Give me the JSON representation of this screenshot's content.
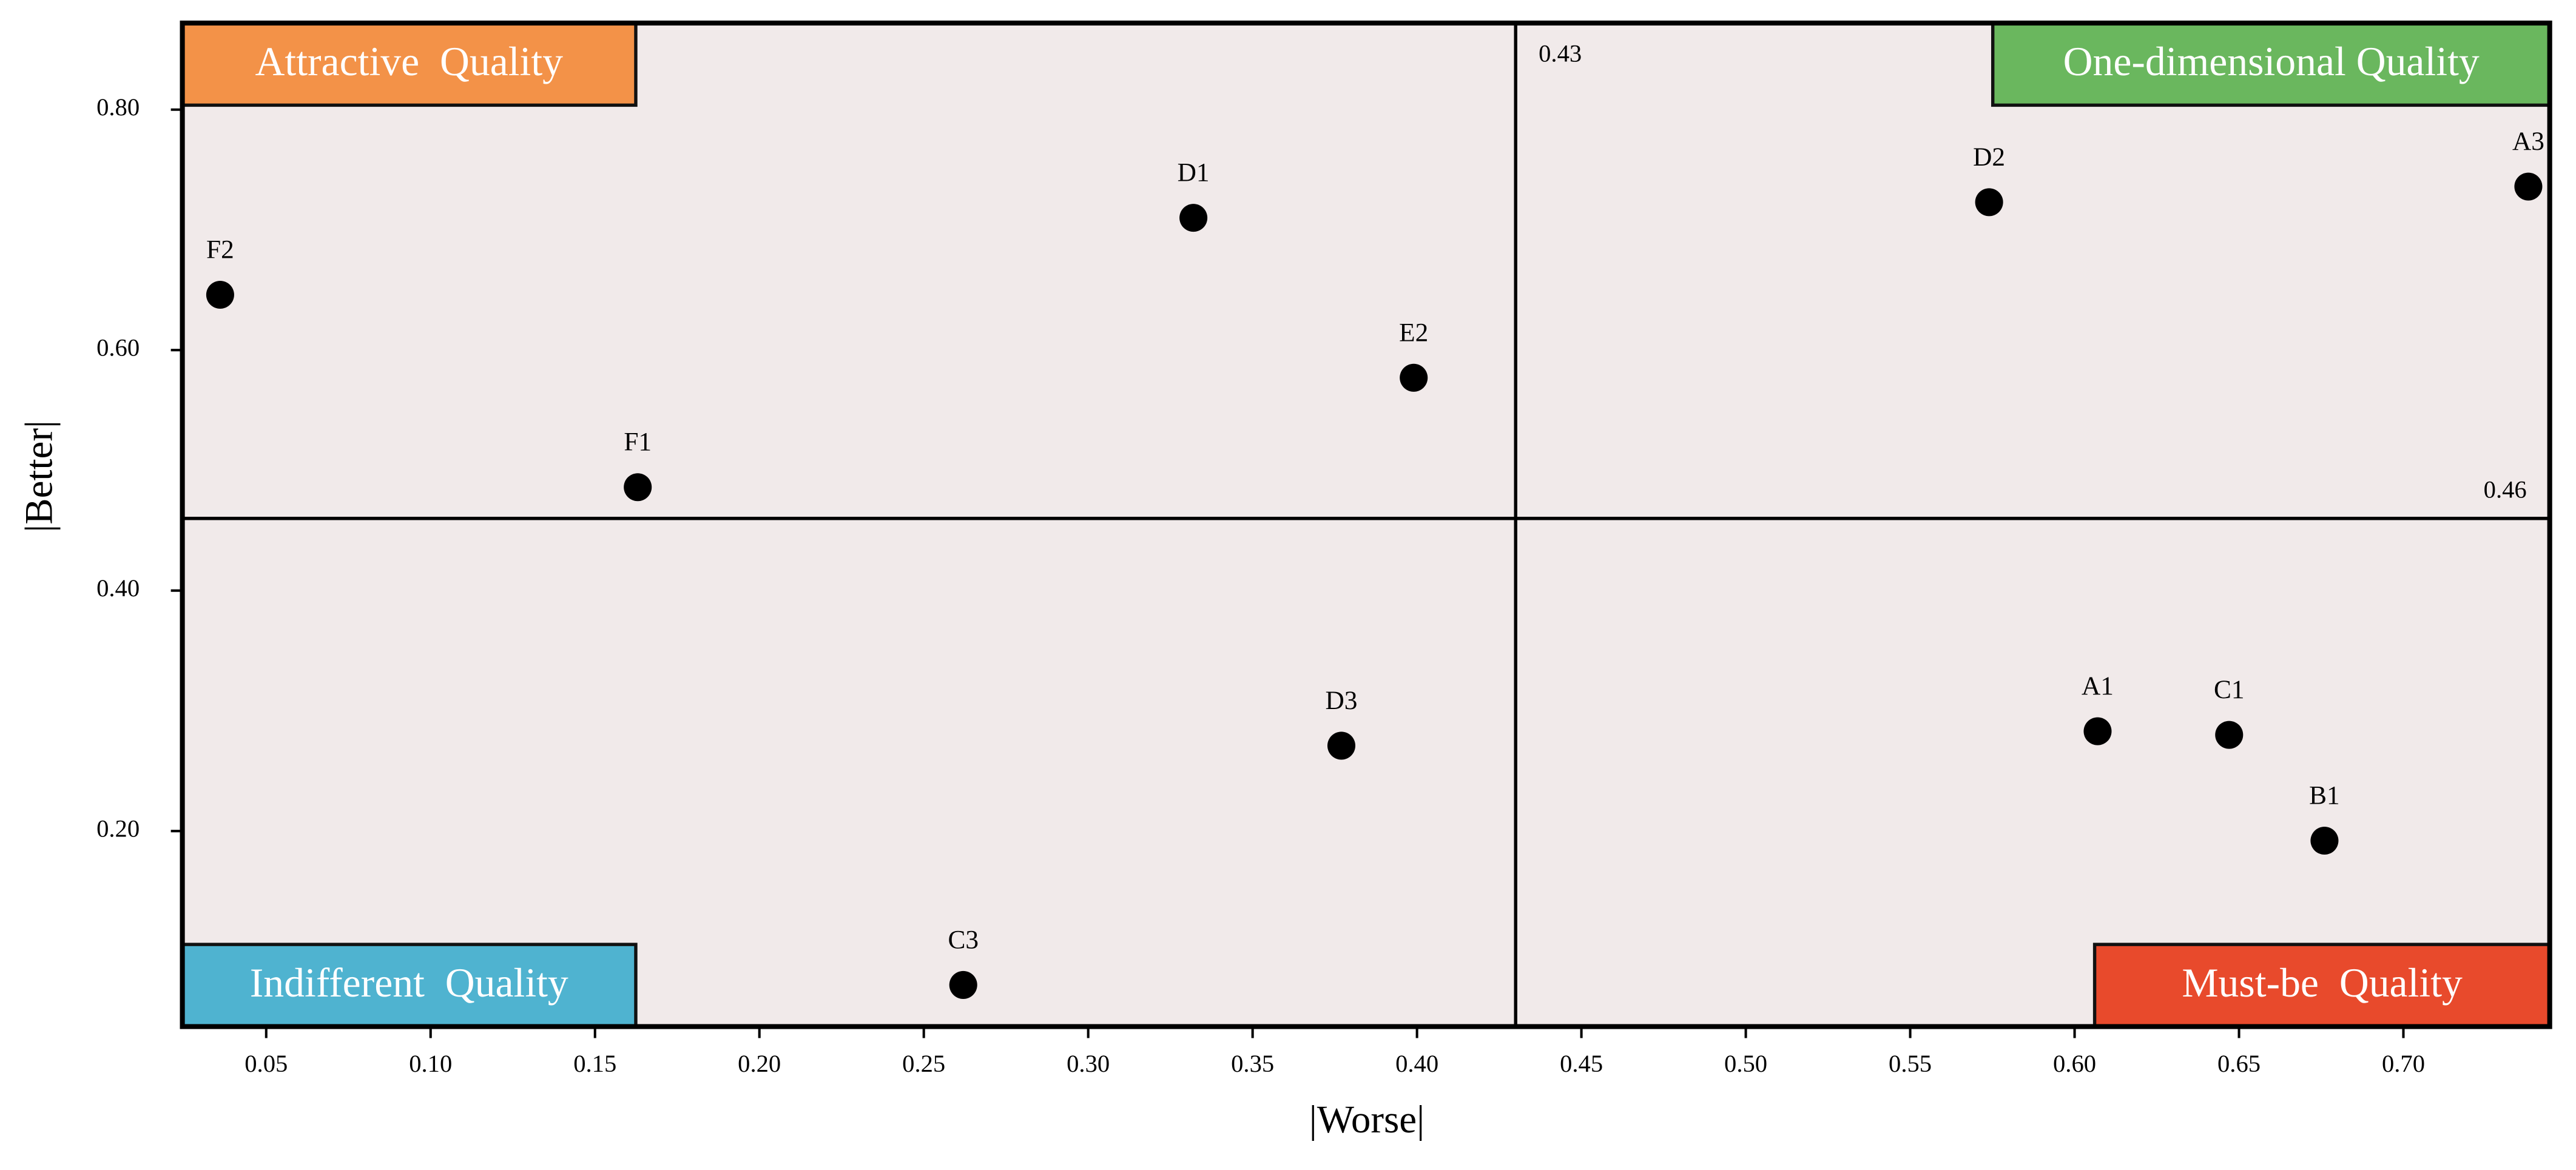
{
  "chart_data": {
    "type": "scatter",
    "x_label": "|Worse|",
    "y_label": "|Better|",
    "labels": [
      "F2",
      "F1",
      "D1",
      "E2",
      "D3",
      "C3",
      "D2",
      "A3",
      "A1",
      "C1",
      "B1"
    ],
    "x": [
      0.036,
      0.163,
      0.332,
      0.399,
      0.377,
      0.262,
      0.574,
      0.738,
      0.607,
      0.647,
      0.676
    ],
    "y": [
      0.646,
      0.486,
      0.71,
      0.577,
      0.271,
      0.072,
      0.723,
      0.736,
      0.283,
      0.28,
      0.192
    ],
    "color": "#000000",
    "xlim": [
      0.0245,
      0.7445
    ],
    "ylim": [
      0.0374,
      0.872
    ],
    "xticks": [
      0.05,
      {
        "value": 0.1,
        "label": "0.10"
      },
      0.15,
      {
        "value": 0.2,
        "label": "0.20"
      },
      0.25,
      {
        "value": 0.3,
        "label": "0.30"
      },
      0.35,
      {
        "value": 0.4,
        "label": "0.40"
      },
      0.45,
      {
        "value": 0.5,
        "label": "0.50"
      },
      0.55,
      {
        "value": 0.6,
        "label": "0.60"
      },
      0.65,
      {
        "value": 0.7,
        "label": "0.70"
      }
    ],
    "yticks": [
      {
        "value": 0.2,
        "label": "0.20"
      },
      {
        "value": 0.4,
        "label": "0.40"
      },
      {
        "value": 0.6,
        "label": "0.60"
      },
      {
        "value": 0.8,
        "label": "0.80"
      }
    ],
    "vline": {
      "value": 0.43,
      "label": "0.43"
    },
    "hline": {
      "value": 0.46,
      "label": "0.46"
    },
    "quadrants": [
      {
        "label": "Attractive  Quality",
        "corner": "top-left",
        "color": "#f39248"
      },
      {
        "label": "One-dimensional Quality",
        "corner": "top-right",
        "color": "#6ab75e"
      },
      {
        "label": "Indifferent  Quality",
        "corner": "bottom-left",
        "color": "#4fb3d0"
      },
      {
        "label": "Must-be  Quality",
        "corner": "bottom-right",
        "color": "#e84a2c"
      }
    ]
  }
}
